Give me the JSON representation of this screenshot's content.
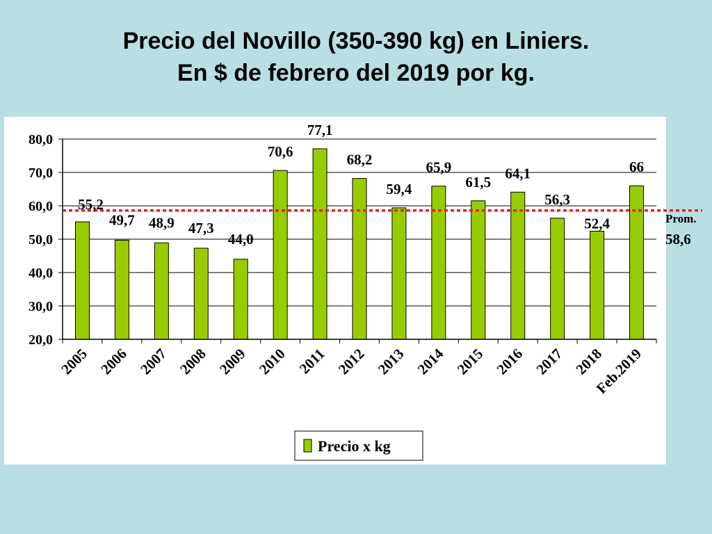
{
  "title_line1": "Precio del Novillo (350-390 kg) en Liniers.",
  "title_line2": "En $ de febrero del 2019 por kg.",
  "colors": {
    "background": "#b9dfe3",
    "panel": "#ffffff",
    "bar_fill": "#99cc00",
    "bar_stroke": "#000000",
    "avg_line": "#e8201a"
  },
  "chart_data": {
    "type": "bar",
    "categories": [
      "2005",
      "2006",
      "2007",
      "2008",
      "2009",
      "2010",
      "2011",
      "2012",
      "2013",
      "2014",
      "2015",
      "2016",
      "2017",
      "2018",
      "Feb.2019"
    ],
    "series": [
      {
        "name": "Precio x kg",
        "values": [
          55.2,
          49.7,
          48.9,
          47.3,
          44.0,
          70.6,
          77.1,
          68.2,
          59.4,
          65.9,
          61.5,
          64.1,
          56.3,
          52.4,
          66
        ],
        "labels": [
          "55,2",
          "49,7",
          "48,9",
          "47,3",
          "44,0",
          "70,6",
          "77,1",
          "68,2",
          "59,4",
          "65,9",
          "61,5",
          "64,1",
          "56,3",
          "52,4",
          "66"
        ]
      }
    ],
    "yticks": [
      "20,0",
      "30,0",
      "40,0",
      "50,0",
      "60,0",
      "70,0",
      "80,0"
    ],
    "ylim": [
      20,
      80
    ],
    "average": {
      "value": 58.6,
      "label_line1": "Prom.",
      "label_line2": "58,6"
    },
    "legend_position": "bottom-center",
    "grid": true
  }
}
